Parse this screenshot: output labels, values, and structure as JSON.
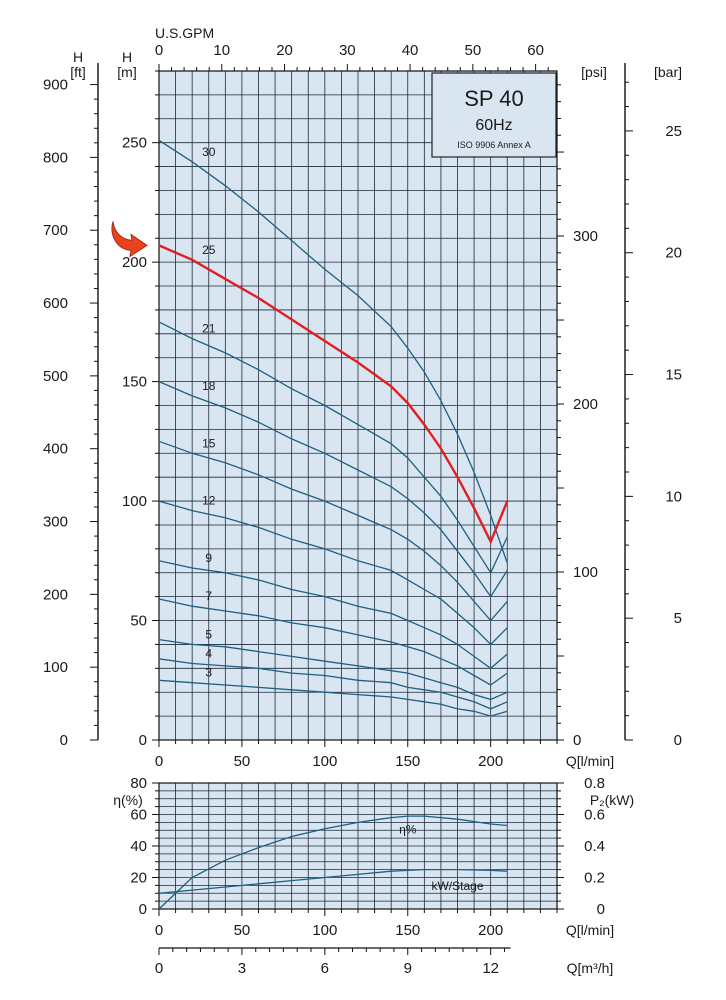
{
  "title": {
    "main": "SP 40",
    "freq": "60Hz",
    "standard": "ISO 9906 Annex A"
  },
  "colors": {
    "panel_bg": "#d9e6f1",
    "grid": "#1c2b3a",
    "curve": "#1f5f82",
    "highlight": "#e02020",
    "arrow": "#e8421f",
    "axis": "#111111"
  },
  "axes": {
    "left_ft_label": [
      "H",
      "[ft]"
    ],
    "left_m_label": [
      "H",
      "[m]"
    ],
    "top_gpm_label": "U.S.GPM",
    "right_psi_label": "[psi]",
    "right_bar_label": "[bar]",
    "flow_label": "Q[l/min]",
    "flow_label_2": "Q[l/min]",
    "eta_label": "η(%)",
    "power_label": "P₂(kW)",
    "m3h_label": "Q[m³/h]",
    "ft_ticks": [
      "0",
      "100",
      "200",
      "300",
      "400",
      "500",
      "600",
      "700",
      "800",
      "900"
    ],
    "m_ticks": [
      "0",
      "50",
      "100",
      "150",
      "200",
      "250"
    ],
    "gpm_ticks": [
      "0",
      "10",
      "20",
      "30",
      "40",
      "50",
      "60"
    ],
    "psi_ticks": [
      "0",
      "100",
      "200",
      "300"
    ],
    "bar_ticks": [
      "0",
      "5",
      "10",
      "15",
      "20",
      "25"
    ],
    "flow_ticks": [
      "0",
      "50",
      "100",
      "150",
      "200"
    ],
    "eta_ticks": [
      "0",
      "20",
      "40",
      "60",
      "80"
    ],
    "power_ticks": [
      "0",
      "0.2",
      "0.4",
      "0.6",
      "0.8"
    ],
    "m3h_ticks": [
      "0",
      "3",
      "6",
      "9",
      "12"
    ]
  },
  "chart_data": [
    {
      "type": "line",
      "title": "SP 40",
      "xlabel": "Q[l/min]",
      "ylabel": "H [m]",
      "xlim": [
        0,
        240
      ],
      "ylim": [
        0,
        280
      ],
      "grid": true,
      "highlighted_series": "25",
      "x": [
        0,
        20,
        40,
        60,
        80,
        100,
        120,
        140,
        150,
        160,
        170,
        180,
        190,
        200,
        210
      ],
      "series": [
        {
          "name": "30",
          "values": [
            251,
            242,
            232,
            221,
            209,
            197,
            186,
            173,
            164,
            154,
            142,
            128,
            112,
            94,
            74
          ]
        },
        {
          "name": "25",
          "values": [
            207,
            201,
            193,
            185,
            176,
            167,
            158,
            148,
            141,
            132,
            122,
            110,
            97,
            83,
            100
          ]
        },
        {
          "name": "21",
          "values": [
            175,
            168,
            162,
            155,
            147,
            140,
            132,
            124,
            118,
            110,
            102,
            92,
            81,
            70,
            85
          ]
        },
        {
          "name": "18",
          "values": [
            150,
            144,
            139,
            133,
            126,
            120,
            113,
            106,
            101,
            95,
            88,
            79,
            70,
            60,
            71
          ]
        },
        {
          "name": "15",
          "values": [
            125,
            120,
            116,
            111,
            105,
            100,
            94,
            88,
            84,
            79,
            73,
            66,
            58,
            50,
            58
          ]
        },
        {
          "name": "12",
          "values": [
            100,
            96,
            93,
            89,
            84,
            80,
            75,
            71,
            67,
            63,
            59,
            53,
            47,
            40,
            47
          ]
        },
        {
          "name": "9",
          "values": [
            75,
            72,
            70,
            67,
            63,
            60,
            56,
            53,
            50,
            47,
            44,
            40,
            35,
            30,
            36
          ]
        },
        {
          "name": "7",
          "values": [
            59,
            56,
            54,
            52,
            49,
            47,
            44,
            41,
            39,
            37,
            34,
            31,
            27,
            23,
            28
          ]
        },
        {
          "name": "5",
          "values": [
            42,
            40,
            39,
            37,
            35,
            33,
            31,
            29,
            28,
            26,
            24,
            22,
            19,
            17,
            20
          ]
        },
        {
          "name": "4",
          "values": [
            34,
            32,
            31,
            30,
            28,
            27,
            25,
            24,
            22,
            21,
            20,
            18,
            16,
            13,
            16
          ]
        },
        {
          "name": "3",
          "values": [
            25,
            24,
            23,
            22,
            21,
            20,
            19,
            18,
            17,
            16,
            15,
            13,
            12,
            10,
            12
          ]
        }
      ]
    },
    {
      "type": "line",
      "xlabel": "Q[l/min]",
      "ylabel": "η(%) / P₂(kW)",
      "xlim": [
        0,
        240
      ],
      "ylim": [
        0,
        80
      ],
      "grid": true,
      "x": [
        0,
        20,
        40,
        60,
        80,
        100,
        120,
        140,
        150,
        160,
        180,
        200,
        210
      ],
      "series": [
        {
          "name": "η%",
          "values": [
            0,
            20,
            31,
            39,
            46,
            51,
            55,
            58,
            59,
            59,
            57,
            54,
            53
          ]
        },
        {
          "name": "kW/Stage",
          "values": [
            0.1,
            0.12,
            0.14,
            0.16,
            0.18,
            0.2,
            0.22,
            0.24,
            0.245,
            0.25,
            0.25,
            0.245,
            0.24
          ]
        }
      ]
    }
  ]
}
